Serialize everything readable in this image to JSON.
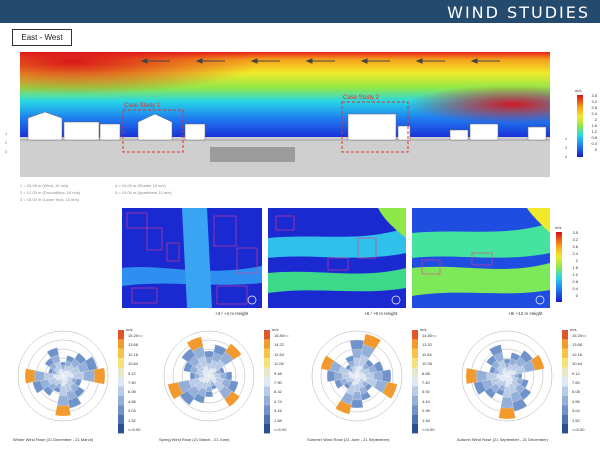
{
  "header": {
    "title": "WIND STUDIES"
  },
  "section": {
    "label": "East - West"
  },
  "case_studies": [
    "Case Study 1",
    "Case Study 2"
  ],
  "markers": [
    "1",
    "2",
    "3",
    "4",
    "5",
    "6"
  ],
  "legend_notes": [
    "1 = 03.05 m (Wind, 10 m/s)",
    "2 = 12.05 m (Groundfloor, 10 m/s)",
    "3 = 15.00 m (Lower floor, 10 m/s)",
    "4 = 10.00 m (Shelter 10 m/s)",
    "5 = 10.00 m (Apartment 12 m/s)"
  ],
  "main_scale": {
    "unit": "m/s",
    "ticks": [
      "3.5",
      "3.2",
      "2.8",
      "2.4",
      "2",
      "1.6",
      "1.2",
      "0.8",
      "0.4",
      "0"
    ]
  },
  "plans": [
    {
      "caption": "+3 / +4 m Height"
    },
    {
      "caption": "+8 / +9 m Height"
    },
    {
      "caption": "+9/ +12 m Height"
    }
  ],
  "plan_scale": {
    "unit": "m/s",
    "ticks": [
      "3.5",
      "3.2",
      "2.8",
      "2.4",
      "2",
      "1.6",
      "1.2",
      "0.8",
      "0.4",
      "0"
    ]
  },
  "roses": [
    {
      "caption": "Winter Wind Rose (21 December - 21 March)",
      "unit": "m/s",
      "ticks": [
        "15.20<=",
        "13.68",
        "12.16",
        "10.64",
        "9.12",
        "7.60",
        "6.08",
        "4.56",
        "3.04",
        "1.52",
        "<=0.00"
      ]
    },
    {
      "caption": "Spring Wind Rose (21 March - 21 June)",
      "unit": "m/s",
      "ticks": [
        "15.80<=",
        "14.22",
        "12.64",
        "11.06",
        "9.48",
        "7.90",
        "6.32",
        "4.74",
        "3.16",
        "1.58",
        "<=0.00"
      ]
    },
    {
      "caption": "Summer Wind Rose (21 June - 21 September)",
      "unit": "m/s",
      "ticks": [
        "14.80<=",
        "13.32",
        "11.84",
        "10.36",
        "8.88",
        "7.40",
        "5.92",
        "4.44",
        "2.96",
        "1.48",
        "<=0.00"
      ]
    },
    {
      "caption": "Autumn Wind Rose (21 September - 21 December)",
      "unit": "m/s",
      "ticks": [
        "15.20<=",
        "13.68",
        "12.16",
        "10.64",
        "9.12",
        "7.60",
        "6.08",
        "4.56",
        "3.04",
        "1.52",
        "<=0.00"
      ]
    }
  ],
  "colors": {
    "header": "#244a6d",
    "case_box": "#e0302a"
  }
}
